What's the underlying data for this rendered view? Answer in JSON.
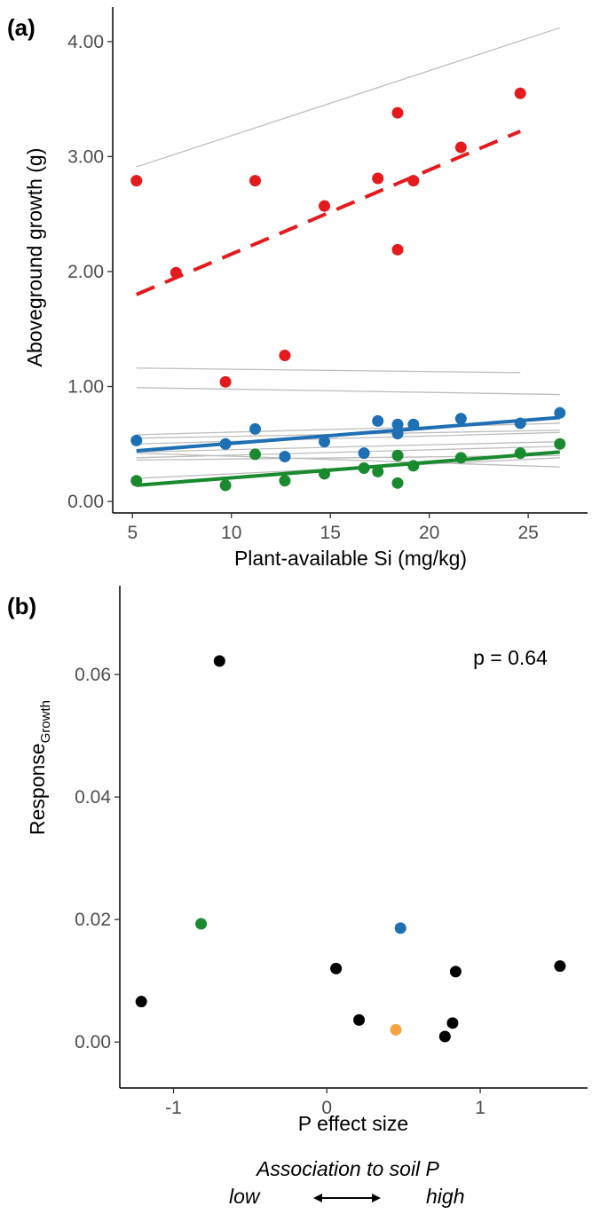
{
  "panels": [
    {
      "label": "(a)"
    },
    {
      "label": "(b)"
    }
  ],
  "chart_data": [
    {
      "type": "scatter",
      "xlabel": "Plant-available Si (mg/kg)",
      "ylabel": "Aboveground growth (g)",
      "xlim": [
        4,
        28
      ],
      "ylim": [
        -0.1,
        4.3
      ],
      "xticks": [
        5,
        10,
        15,
        20,
        25
      ],
      "yticks": [
        0,
        1,
        2,
        3,
        4
      ],
      "ytick_labels": [
        "0.00",
        "1.00",
        "2.00",
        "3.00",
        "4.00"
      ],
      "grid": false,
      "series": [
        {
          "color": "#e41a1c",
          "points": [
            [
              5.2,
              2.79
            ],
            [
              7.2,
              1.99
            ],
            [
              9.7,
              1.04
            ],
            [
              11.2,
              2.79
            ],
            [
              12.7,
              1.27
            ],
            [
              14.7,
              2.57
            ],
            [
              17.4,
              2.81
            ],
            [
              18.4,
              3.38
            ],
            [
              18.4,
              2.19
            ],
            [
              19.2,
              2.79
            ],
            [
              21.6,
              3.08
            ],
            [
              24.6,
              3.55
            ]
          ],
          "trend": {
            "x": [
              5.2,
              24.6
            ],
            "y": [
              1.8,
              3.22
            ],
            "style": "dashed"
          }
        },
        {
          "color": "#1f6fb4",
          "points": [
            [
              5.2,
              0.53
            ],
            [
              9.7,
              0.5
            ],
            [
              11.2,
              0.63
            ],
            [
              12.7,
              0.39
            ],
            [
              14.7,
              0.52
            ],
            [
              16.7,
              0.42
            ],
            [
              17.4,
              0.7
            ],
            [
              18.4,
              0.67
            ],
            [
              18.4,
              0.59
            ],
            [
              19.2,
              0.67
            ],
            [
              21.6,
              0.72
            ],
            [
              24.6,
              0.68
            ],
            [
              26.6,
              0.77
            ]
          ],
          "trend": {
            "x": [
              5.2,
              26.6
            ],
            "y": [
              0.44,
              0.73
            ],
            "style": "solid"
          }
        },
        {
          "color": "#1a8a2e",
          "points": [
            [
              5.2,
              0.18
            ],
            [
              9.7,
              0.14
            ],
            [
              11.2,
              0.41
            ],
            [
              12.7,
              0.18
            ],
            [
              14.7,
              0.24
            ],
            [
              16.7,
              0.29
            ],
            [
              17.4,
              0.26
            ],
            [
              18.4,
              0.4
            ],
            [
              18.4,
              0.16
            ],
            [
              19.2,
              0.31
            ],
            [
              21.6,
              0.38
            ],
            [
              24.6,
              0.42
            ],
            [
              26.6,
              0.5
            ]
          ],
          "trend": {
            "x": [
              5.2,
              26.6
            ],
            "y": [
              0.14,
              0.43
            ],
            "style": "solid"
          }
        }
      ],
      "grey_lines": [
        {
          "x": [
            5.2,
            26.6
          ],
          "y": [
            2.91,
            4.12
          ]
        },
        {
          "x": [
            5.2,
            24.6
          ],
          "y": [
            1.16,
            1.12
          ]
        },
        {
          "x": [
            5.2,
            26.6
          ],
          "y": [
            0.99,
            0.93
          ]
        },
        {
          "x": [
            5.2,
            26.6
          ],
          "y": [
            0.58,
            0.68
          ]
        },
        {
          "x": [
            5.2,
            26.6
          ],
          "y": [
            0.55,
            0.62
          ]
        },
        {
          "x": [
            5.2,
            26.6
          ],
          "y": [
            0.5,
            0.6
          ]
        },
        {
          "x": [
            5.2,
            26.6
          ],
          "y": [
            0.43,
            0.52
          ]
        },
        {
          "x": [
            5.2,
            26.6
          ],
          "y": [
            0.38,
            0.48
          ]
        },
        {
          "x": [
            5.2,
            26.6
          ],
          "y": [
            0.36,
            0.4
          ]
        },
        {
          "x": [
            5.2,
            26.6
          ],
          "y": [
            0.2,
            0.38
          ]
        },
        {
          "x": [
            5.2,
            26.6
          ],
          "y": [
            0.42,
            0.3
          ]
        }
      ]
    },
    {
      "type": "scatter",
      "xlabel": "P effect size",
      "ylabel": "Response",
      "ylabel_subscript": "Growth",
      "annotation": "p = 0.64",
      "xlim": [
        -1.35,
        1.7
      ],
      "ylim": [
        -0.0075,
        0.0745
      ],
      "xticks": [
        -1,
        0,
        1
      ],
      "xtick_labels": [
        "-1",
        "0",
        "1"
      ],
      "yticks": [
        0,
        0.02,
        0.04,
        0.06
      ],
      "ytick_labels": [
        "0.00",
        "0.02",
        "0.04",
        "0.06"
      ],
      "grid": false,
      "points": [
        {
          "x": -1.21,
          "y": 0.0066,
          "color": "#000000"
        },
        {
          "x": -0.7,
          "y": 0.0622,
          "color": "#000000"
        },
        {
          "x": -0.82,
          "y": 0.0193,
          "color": "#1a8a2e"
        },
        {
          "x": 0.06,
          "y": 0.012,
          "color": "#000000"
        },
        {
          "x": 0.21,
          "y": 0.0036,
          "color": "#000000"
        },
        {
          "x": 0.45,
          "y": 0.002,
          "color": "#f4a341"
        },
        {
          "x": 0.48,
          "y": 0.0186,
          "color": "#1f6fb4"
        },
        {
          "x": 0.77,
          "y": 0.0009,
          "color": "#000000"
        },
        {
          "x": 0.82,
          "y": 0.0031,
          "color": "#000000"
        },
        {
          "x": 0.84,
          "y": 0.0115,
          "color": "#000000"
        },
        {
          "x": 1.52,
          "y": 0.0124,
          "color": "#000000"
        }
      ]
    }
  ],
  "association": {
    "title": "Association to soil P",
    "low": "low",
    "high": "high"
  }
}
